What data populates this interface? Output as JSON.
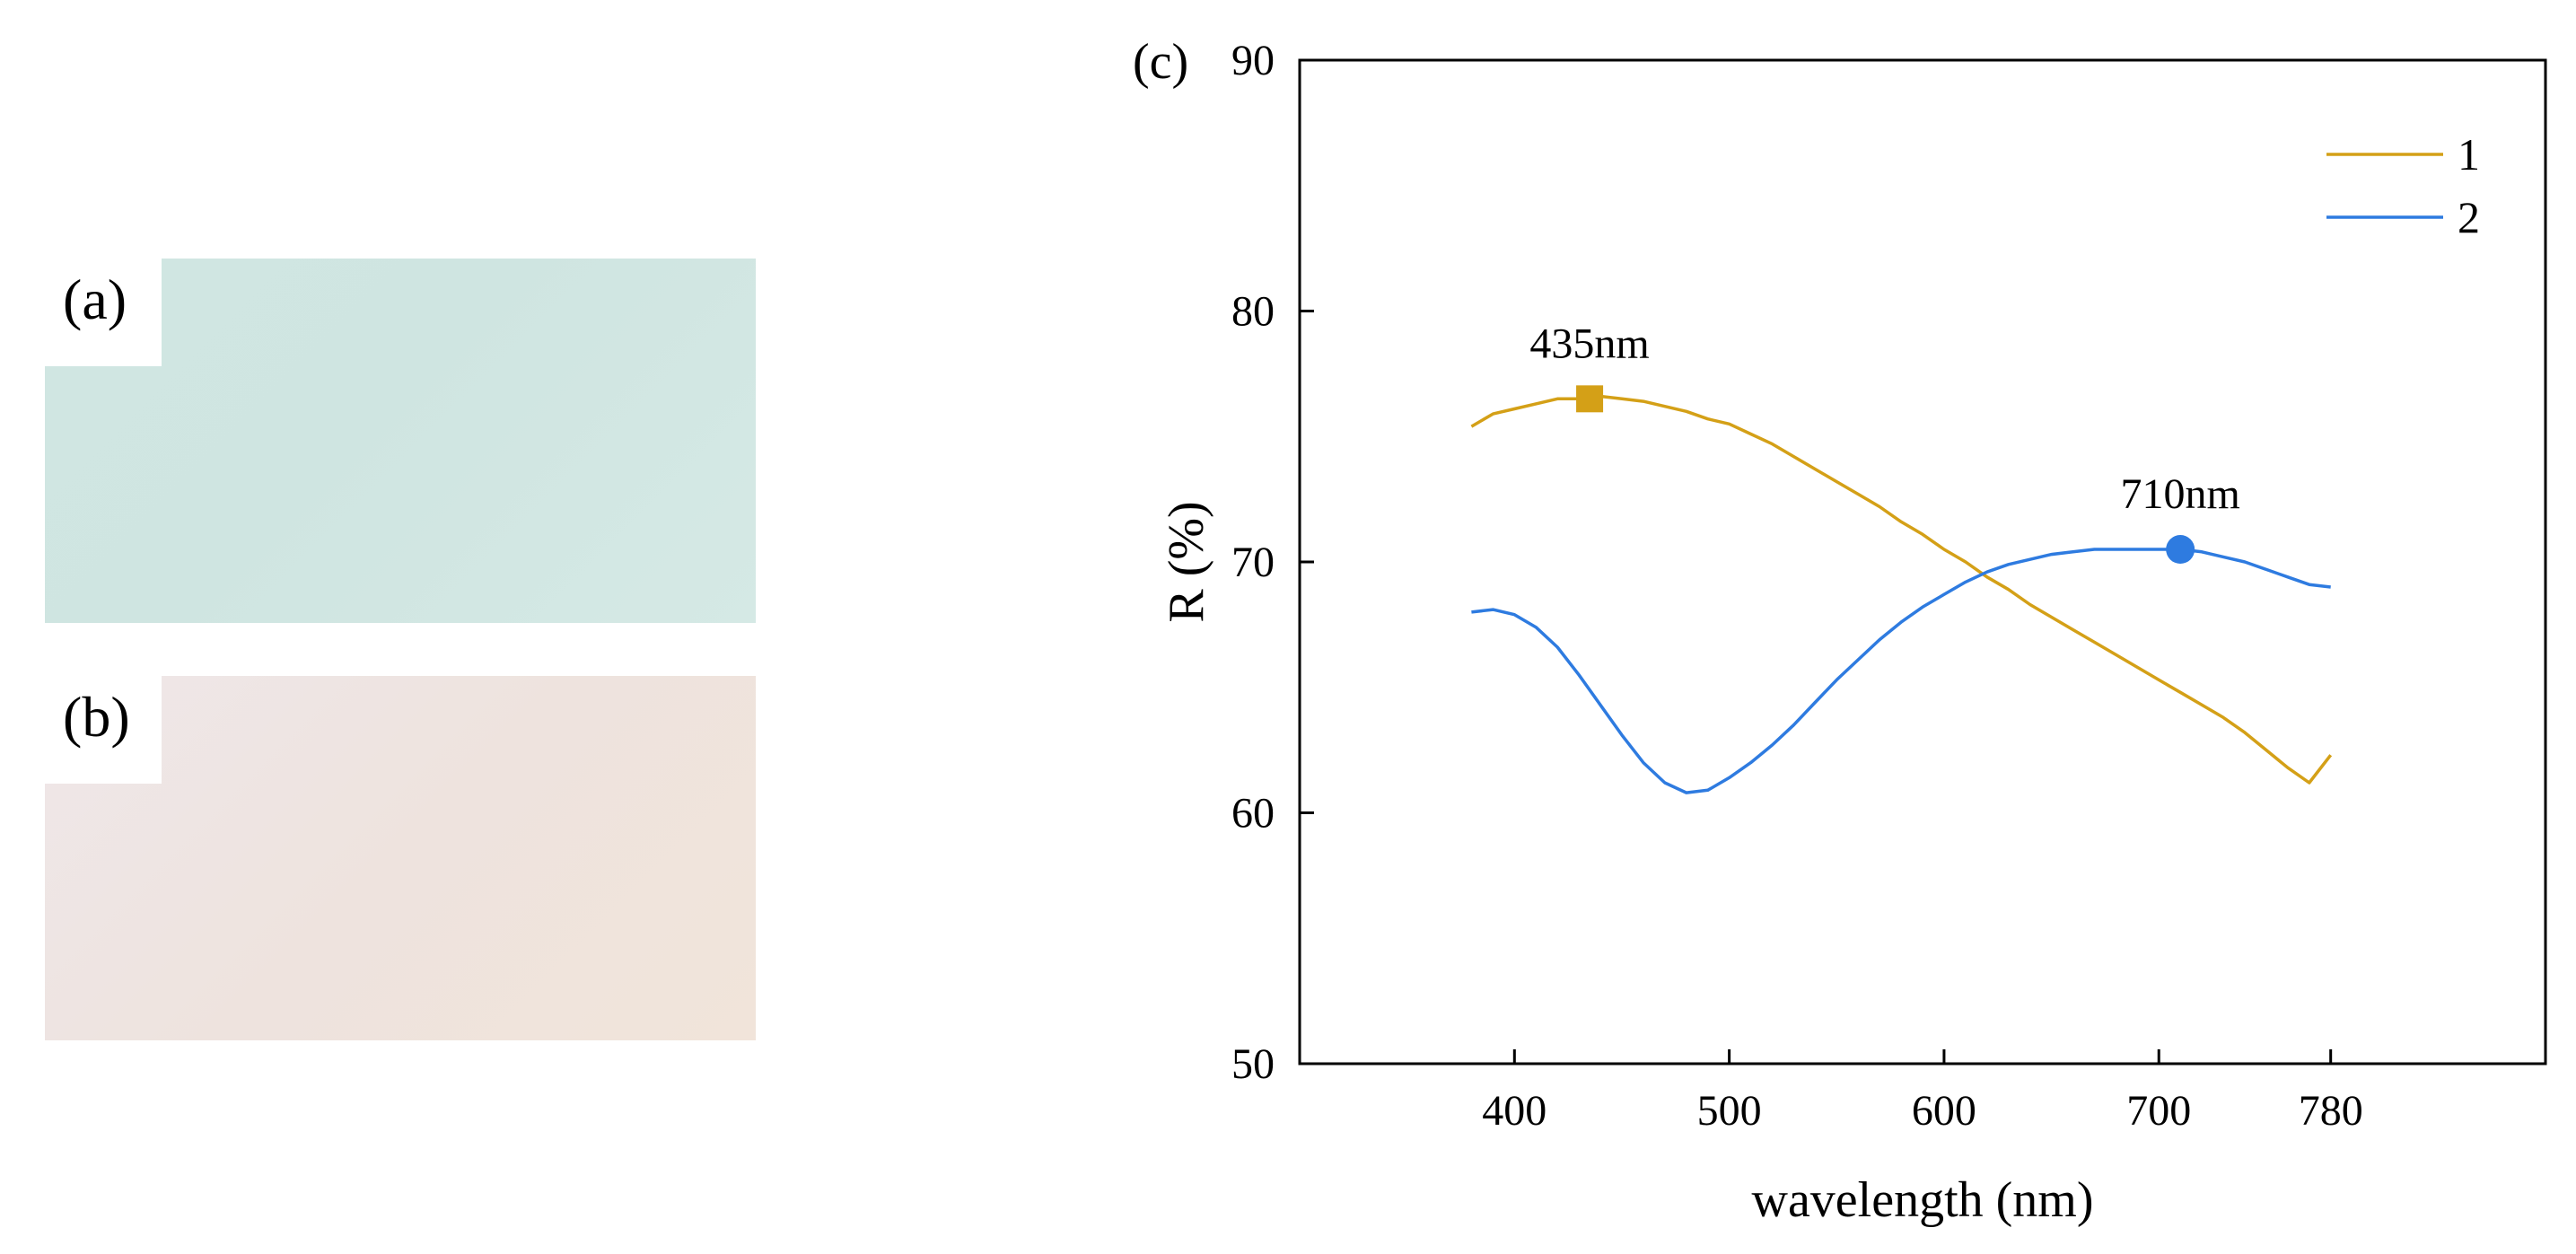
{
  "panels": {
    "a": {
      "label": "(a)",
      "tint": "#d0e6e2"
    },
    "b": {
      "label": "(b)",
      "tint": "#efe5df"
    }
  },
  "chart_data": {
    "type": "line",
    "panel_label": "(c)",
    "title": "",
    "xlabel": "wavelength (nm)",
    "ylabel": "R (%)",
    "xlim": [
      300,
      880
    ],
    "ylim": [
      50,
      90
    ],
    "xticks": [
      400,
      500,
      600,
      700,
      780
    ],
    "xtick_labels": [
      "400",
      "500",
      "600",
      "700",
      "780"
    ],
    "yticks": [
      50,
      60,
      70,
      80,
      90
    ],
    "ytick_labels": [
      "50",
      "60",
      "70",
      "80",
      "90"
    ],
    "grid": false,
    "legend_position": "top-right",
    "series": [
      {
        "name": "1",
        "color": "#d4a017",
        "x": [
          380,
          390,
          400,
          410,
          420,
          430,
          440,
          450,
          460,
          470,
          480,
          490,
          500,
          510,
          520,
          530,
          540,
          550,
          560,
          570,
          580,
          590,
          600,
          610,
          620,
          630,
          640,
          650,
          660,
          670,
          680,
          690,
          700,
          710,
          720,
          730,
          740,
          750,
          760,
          770,
          780
        ],
        "y": [
          75.4,
          75.9,
          76.1,
          76.3,
          76.5,
          76.5,
          76.6,
          76.5,
          76.4,
          76.2,
          76.0,
          75.7,
          75.5,
          75.1,
          74.7,
          74.2,
          73.7,
          73.2,
          72.7,
          72.2,
          71.6,
          71.1,
          70.5,
          70.0,
          69.4,
          68.9,
          68.3,
          67.8,
          67.3,
          66.8,
          66.3,
          65.8,
          65.3,
          64.8,
          64.3,
          63.8,
          63.2,
          62.5,
          61.8,
          61.2,
          62.3
        ]
      },
      {
        "name": "2",
        "color": "#2e7be0",
        "x": [
          380,
          390,
          400,
          410,
          420,
          430,
          440,
          450,
          460,
          470,
          480,
          490,
          500,
          510,
          520,
          530,
          540,
          550,
          560,
          570,
          580,
          590,
          600,
          610,
          620,
          630,
          640,
          650,
          660,
          670,
          680,
          690,
          700,
          710,
          720,
          730,
          740,
          750,
          760,
          770,
          780
        ],
        "y": [
          68.0,
          68.1,
          67.9,
          67.4,
          66.6,
          65.5,
          64.3,
          63.1,
          62.0,
          61.2,
          60.8,
          60.9,
          61.4,
          62.0,
          62.7,
          63.5,
          64.4,
          65.3,
          66.1,
          66.9,
          67.6,
          68.2,
          68.7,
          69.2,
          69.6,
          69.9,
          70.1,
          70.3,
          70.4,
          70.5,
          70.5,
          70.5,
          70.5,
          70.5,
          70.4,
          70.2,
          70.0,
          69.7,
          69.4,
          69.1,
          69.0
        ]
      }
    ],
    "annotations": [
      {
        "series": "1",
        "label": "435nm",
        "x": 435,
        "y": 76.5,
        "marker": "square"
      },
      {
        "series": "2",
        "label": "710nm",
        "x": 710,
        "y": 70.5,
        "marker": "circle"
      }
    ]
  }
}
